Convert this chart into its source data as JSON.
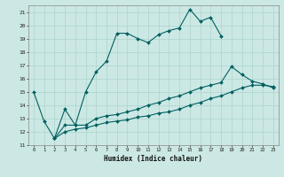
{
  "title": "",
  "xlabel": "Humidex (Indice chaleur)",
  "bg_color": "#cce8e4",
  "grid_color": "#aad4cc",
  "line_color": "#006060",
  "xlim": [
    -0.5,
    23.5
  ],
  "ylim": [
    11,
    21.5
  ],
  "yticks": [
    11,
    12,
    13,
    14,
    15,
    16,
    17,
    18,
    19,
    20,
    21
  ],
  "xticks": [
    0,
    1,
    2,
    3,
    4,
    5,
    6,
    7,
    8,
    9,
    10,
    11,
    12,
    13,
    14,
    15,
    16,
    17,
    18,
    19,
    20,
    21,
    22,
    23
  ],
  "series": [
    {
      "x": [
        0,
        1,
        2,
        3,
        4,
        5,
        6,
        7,
        8,
        9,
        10,
        11,
        12,
        13,
        14,
        15,
        16,
        17,
        18
      ],
      "y": [
        15.0,
        12.8,
        11.5,
        13.7,
        12.5,
        15.0,
        16.5,
        17.3,
        19.4,
        19.4,
        19.0,
        18.7,
        19.3,
        19.6,
        19.8,
        21.2,
        20.3,
        20.6,
        19.2
      ],
      "marker": "D",
      "markersize": 2.0,
      "linewidth": 0.8
    },
    {
      "x": [
        2,
        3,
        4,
        5,
        6,
        7,
        8,
        9,
        10,
        11,
        12,
        13,
        14,
        15,
        16,
        17,
        18,
        19,
        20,
        21,
        22,
        23
      ],
      "y": [
        11.5,
        12.5,
        12.5,
        12.5,
        13.0,
        13.2,
        13.3,
        13.5,
        13.7,
        14.0,
        14.2,
        14.5,
        14.7,
        15.0,
        15.3,
        15.5,
        15.7,
        16.9,
        16.3,
        15.8,
        15.6,
        15.3
      ],
      "marker": "D",
      "markersize": 2.0,
      "linewidth": 0.8
    },
    {
      "x": [
        2,
        3,
        4,
        5,
        6,
        7,
        8,
        9,
        10,
        11,
        12,
        13,
        14,
        15,
        16,
        17,
        18,
        19,
        20,
        21,
        22,
        23
      ],
      "y": [
        11.5,
        12.0,
        12.2,
        12.3,
        12.5,
        12.7,
        12.8,
        12.9,
        13.1,
        13.2,
        13.4,
        13.5,
        13.7,
        14.0,
        14.2,
        14.5,
        14.7,
        15.0,
        15.3,
        15.5,
        15.5,
        15.4
      ],
      "marker": "D",
      "markersize": 2.0,
      "linewidth": 0.8
    }
  ]
}
